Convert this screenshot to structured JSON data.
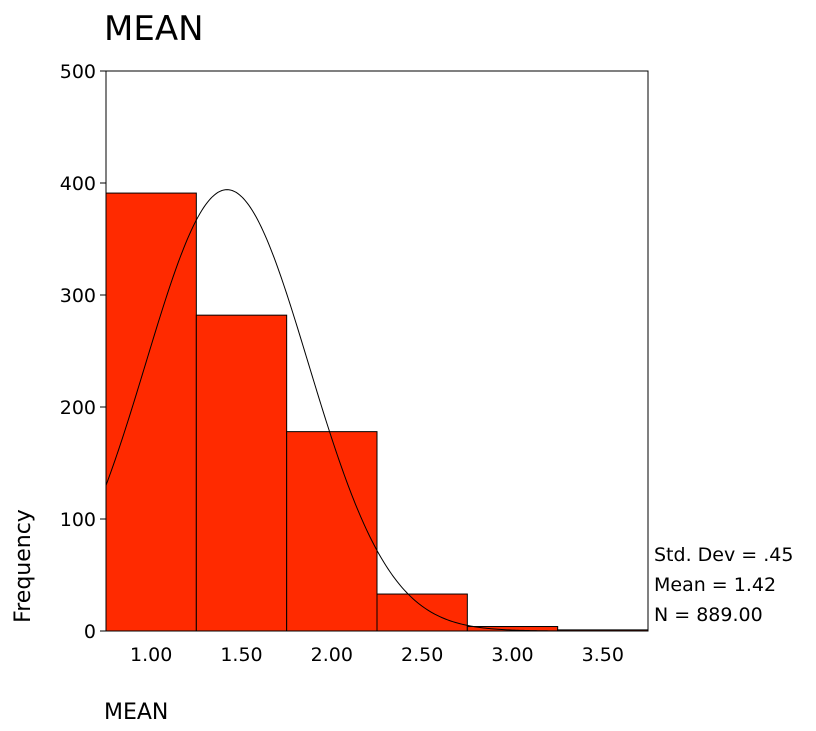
{
  "chart_data": {
    "type": "bar",
    "title": "MEAN",
    "xlabel": "MEAN",
    "ylabel": "Frequency",
    "bins": [
      {
        "start": 0.75,
        "end": 1.25,
        "count": 391
      },
      {
        "start": 1.25,
        "end": 1.75,
        "count": 282
      },
      {
        "start": 1.75,
        "end": 2.25,
        "count": 178
      },
      {
        "start": 2.25,
        "end": 2.75,
        "count": 33
      },
      {
        "start": 2.75,
        "end": 3.25,
        "count": 4
      },
      {
        "start": 3.25,
        "end": 3.75,
        "count": 1
      }
    ],
    "x_ticks": [
      1.0,
      1.5,
      2.0,
      2.5,
      3.0,
      3.5
    ],
    "x_tick_labels": [
      "1.00",
      "1.50",
      "2.00",
      "2.50",
      "3.00",
      "3.50"
    ],
    "xlim": [
      0.75,
      3.75
    ],
    "y_ticks": [
      0,
      100,
      200,
      300,
      400,
      500
    ],
    "y_tick_labels": [
      "0",
      "100",
      "200",
      "300",
      "400",
      "500"
    ],
    "ylim": [
      0,
      500
    ],
    "normal_curve": {
      "mean": 1.42,
      "std_dev": 0.45,
      "n": 889,
      "bin_width": 0.5
    },
    "stats": {
      "std_dev": "Std. Dev = .45",
      "mean": "Mean = 1.42",
      "n": "N = 889.00"
    },
    "colors": {
      "bar_fill": "#ff2a00",
      "bar_stroke": "#000000",
      "curve": "#000000"
    },
    "grid": false
  }
}
